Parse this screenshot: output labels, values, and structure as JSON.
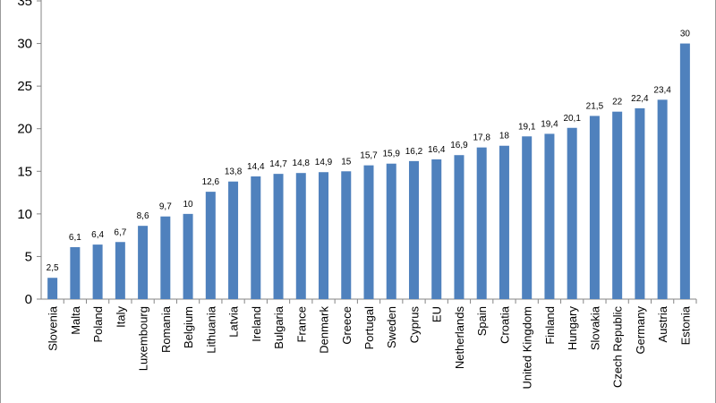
{
  "chart_data": {
    "type": "bar",
    "categories": [
      "Slovenia",
      "Malta",
      "Poland",
      "Italy",
      "Luxembourg",
      "Romania",
      "Belgium",
      "Lithuania",
      "Latvia",
      "Ireland",
      "Bulgaria",
      "France",
      "Denmark",
      "Greece",
      "Portugal",
      "Sweden",
      "Cyprus",
      "EU",
      "Netherlands",
      "Spain",
      "Croatia",
      "United Kingdom",
      "Finland",
      "Hungary",
      "Slovakia",
      "Czech Republic",
      "Germany",
      "Austria",
      "Estonia"
    ],
    "values": [
      2.5,
      6.1,
      6.4,
      6.7,
      8.6,
      9.7,
      10,
      12.6,
      13.8,
      14.4,
      14.7,
      14.8,
      14.9,
      15,
      15.7,
      15.9,
      16.2,
      16.4,
      16.9,
      17.8,
      18,
      19.1,
      19.4,
      20.1,
      21.5,
      22,
      22.4,
      23.4,
      30
    ],
    "value_labels": [
      "2,5",
      "6,1",
      "6,4",
      "6,7",
      "8,6",
      "9,7",
      "10",
      "12,6",
      "13,8",
      "14,4",
      "14,7",
      "14,8",
      "14,9",
      "15",
      "15,7",
      "15,9",
      "16,2",
      "16,4",
      "16,9",
      "17,8",
      "18",
      "19,1",
      "19,4",
      "20,1",
      "21,5",
      "22",
      "22,4",
      "23,4",
      "30"
    ],
    "y_ticks": [
      "0",
      "5",
      "10",
      "15",
      "20",
      "25",
      "30",
      "35"
    ],
    "ylim": [
      0,
      35
    ],
    "grid": false,
    "bar_color": "#4f81bd",
    "title": "",
    "xlabel": "",
    "ylabel": ""
  }
}
